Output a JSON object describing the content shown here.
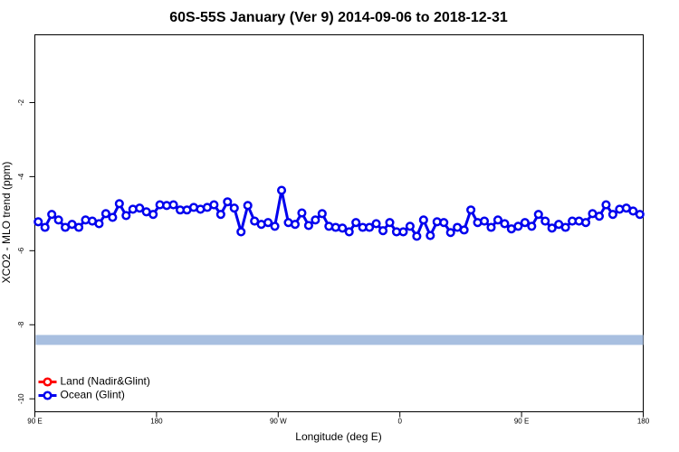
{
  "chart_data": {
    "type": "line",
    "title": "60S-55S January (Ver 9)   2014-09-06 to 2018-12-31",
    "x_label": "Longitude (deg E)",
    "y_label": "XCO2 - MLO trend (ppm)",
    "xlim": [
      90,
      540
    ],
    "ylim": [
      -10.35,
      -0.17
    ],
    "xticks": [
      {
        "value": 90,
        "label": "90 E"
      },
      180,
      {
        "value": 270,
        "label": "90 W"
      },
      {
        "value": 360,
        "label": "0"
      },
      {
        "value": 450,
        "label": "90 E"
      },
      {
        "value": 540,
        "label": "180"
      }
    ],
    "yticks": [
      -10,
      -8,
      -6,
      -4,
      -2
    ],
    "band": {
      "value": -8.41,
      "color": "#a8bfe0"
    },
    "legend": "bottom-left",
    "series": [
      {
        "name": "Land (Nadir&Glint)",
        "color": "#ff0000"
      },
      {
        "name": "Ocean (Glint)",
        "color": "#0000ee",
        "x": [
          92.5,
          97.5,
          102.5,
          107.5,
          112.5,
          117.5,
          122.5,
          127.5,
          132.5,
          137.5,
          142.5,
          147.5,
          152.5,
          157.5,
          162.5,
          167.5,
          172.5,
          177.5,
          182.5,
          187.5,
          192.5,
          197.5,
          202.5,
          207.5,
          212.5,
          217.5,
          222.5,
          227.5,
          232.5,
          237.5,
          242.5,
          247.5,
          252.5,
          257.5,
          262.5,
          267.5,
          272.5,
          277.5,
          282.5,
          287.5,
          292.5,
          297.5,
          302.5,
          307.5,
          312.5,
          317.5,
          322.5,
          327.5,
          332.5,
          337.5,
          342.5,
          347.5,
          352.5,
          357.5,
          362.5,
          367.5,
          372.5,
          377.5,
          382.5,
          387.5,
          392.5,
          397.5,
          402.5,
          407.5,
          412.5,
          417.5,
          422.5,
          427.5,
          432.5,
          437.5,
          442.5,
          447.5,
          452.5,
          457.5,
          462.5,
          467.5,
          472.5,
          477.5,
          482.5,
          487.5,
          492.5,
          497.5,
          502.5,
          507.5,
          512.5,
          517.5,
          522.5,
          527.5,
          532.5,
          537.5
        ],
        "values": [
          -5.22,
          -5.37,
          -5.02,
          -5.17,
          -5.37,
          -5.29,
          -5.37,
          -5.17,
          -5.2,
          -5.27,
          -5.0,
          -5.1,
          -4.73,
          -5.05,
          -4.88,
          -4.85,
          -4.95,
          -5.02,
          -4.76,
          -4.78,
          -4.76,
          -4.9,
          -4.9,
          -4.83,
          -4.88,
          -4.83,
          -4.76,
          -5.02,
          -4.68,
          -4.85,
          -5.49,
          -4.78,
          -5.2,
          -5.29,
          -5.24,
          -5.34,
          -4.37,
          -5.24,
          -5.29,
          -4.98,
          -5.32,
          -5.17,
          -5.0,
          -5.34,
          -5.37,
          -5.39,
          -5.49,
          -5.24,
          -5.37,
          -5.37,
          -5.27,
          -5.46,
          -5.24,
          -5.49,
          -5.49,
          -5.34,
          -5.61,
          -5.17,
          -5.59,
          -5.22,
          -5.24,
          -5.51,
          -5.37,
          -5.44,
          -4.9,
          -5.24,
          -5.2,
          -5.37,
          -5.17,
          -5.27,
          -5.41,
          -5.34,
          -5.24,
          -5.34,
          -5.02,
          -5.2,
          -5.39,
          -5.29,
          -5.37,
          -5.2,
          -5.2,
          -5.24,
          -5.0,
          -5.07,
          -4.76,
          -5.02,
          -4.88,
          -4.85,
          -4.93,
          -5.02
        ]
      }
    ]
  }
}
